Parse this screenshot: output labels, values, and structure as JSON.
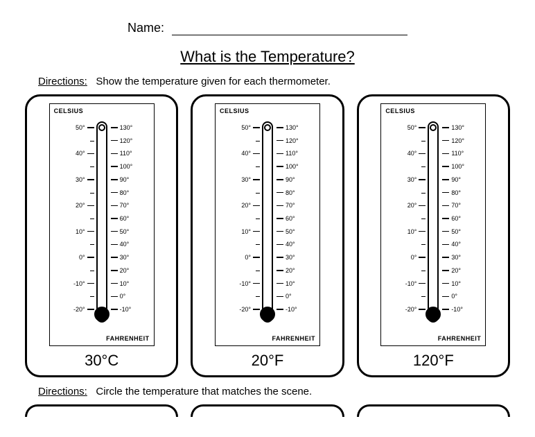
{
  "name_label": "Name:",
  "title": "What is the Temperature?",
  "directions1_label": "Directions:",
  "directions1_text": "Show the temperature given for each thermometer.",
  "directions2_label": "Directions:",
  "directions2_text": "Circle the temperature that matches the scene.",
  "thermometer": {
    "celsius_label": "CELSIUS",
    "fahrenheit_label": "FAHRENHEIT",
    "celsius_ticks": [
      {
        "v": "50°",
        "major": true
      },
      {
        "v": "40°",
        "major": true
      },
      {
        "v": "30°",
        "major": true
      },
      {
        "v": "20°",
        "major": true
      },
      {
        "v": "10°",
        "major": true
      },
      {
        "v": "0°",
        "major": true
      },
      {
        "v": "-10°",
        "major": true
      },
      {
        "v": "-20°",
        "major": true
      }
    ],
    "celsius_range": {
      "min": -20,
      "max": 50,
      "step": 10
    },
    "fahrenheit_ticks": [
      {
        "v": "130°"
      },
      {
        "v": "120°"
      },
      {
        "v": "110°"
      },
      {
        "v": "100°"
      },
      {
        "v": "90°"
      },
      {
        "v": "80°"
      },
      {
        "v": "70°"
      },
      {
        "v": "60°"
      },
      {
        "v": "50°"
      },
      {
        "v": "40°"
      },
      {
        "v": "30°"
      },
      {
        "v": "20°"
      },
      {
        "v": "10°"
      },
      {
        "v": "0°"
      },
      {
        "v": "-10°"
      }
    ],
    "fahrenheit_range": {
      "min": -10,
      "max": 130,
      "step": 10
    }
  },
  "cards": [
    {
      "answer": "30°C"
    },
    {
      "answer": "20°F"
    },
    {
      "answer": "120°F"
    }
  ],
  "style": {
    "border_color": "#000000",
    "background": "#ffffff",
    "card_border_width": 3.5,
    "card_radius": 22,
    "tube_width": 16,
    "font_family": "Arial"
  }
}
